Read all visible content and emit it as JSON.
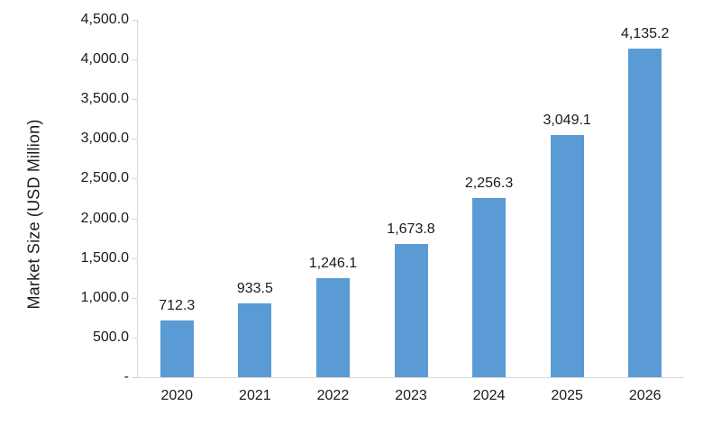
{
  "chart_data": {
    "type": "bar",
    "title": "",
    "xlabel": "",
    "ylabel": "Market Size (USD Million)",
    "categories": [
      "2020",
      "2021",
      "2022",
      "2023",
      "2024",
      "2025",
      "2026"
    ],
    "values": [
      712.3,
      933.5,
      1246.1,
      1673.8,
      2256.3,
      3049.1,
      4135.2
    ],
    "value_labels": [
      "712.3",
      "933.5",
      "1,246.1",
      "1,673.8",
      "2,256.3",
      "3,049.1",
      "4,135.2"
    ],
    "ylim": [
      0,
      4500
    ],
    "ytick_values": [
      4500,
      4000,
      3500,
      3000,
      2500,
      2000,
      1500,
      1000,
      500,
      0
    ],
    "ytick_labels": [
      "4,500.0",
      "4,000.0",
      "3,500.0",
      "3,000.0",
      "2,500.0",
      "2,000.0",
      "1,500.0",
      "1,000.0",
      "500.0",
      "-"
    ],
    "grid": "off",
    "legend": "none",
    "bar_color": "#5b9bd5",
    "axis_color": "#d9d9d9",
    "text_color": "#1a1a1a"
  }
}
